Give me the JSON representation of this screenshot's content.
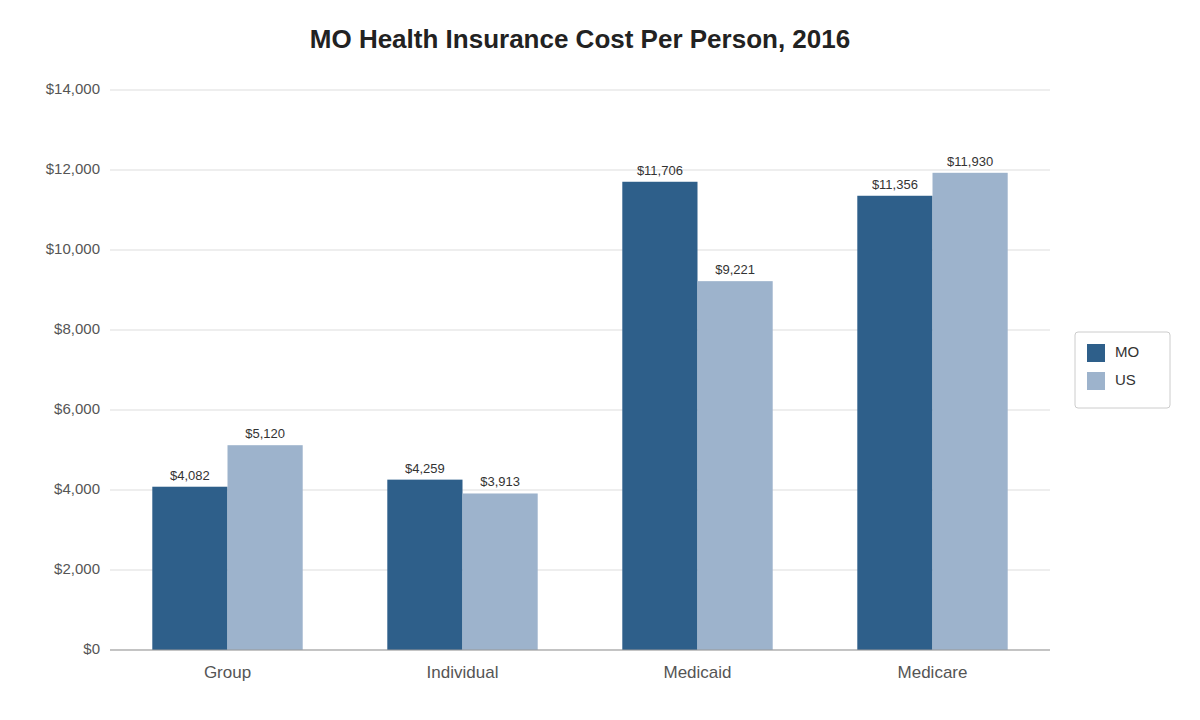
{
  "chart_data": {
    "type": "bar",
    "title": "MO Health Insurance Cost Per Person, 2016",
    "categories": [
      "Group",
      "Individual",
      "Medicaid",
      "Medicare"
    ],
    "series": [
      {
        "name": "MO",
        "color": "#2E5F8A",
        "values": [
          4082,
          4259,
          11706,
          11356
        ],
        "value_labels": [
          "$4,082",
          "$4,259",
          "$11,706",
          "$11,356"
        ]
      },
      {
        "name": "US",
        "color": "#9DB3CC",
        "values": [
          5120,
          3913,
          9221,
          11930
        ],
        "value_labels": [
          "$5,120",
          "$3,913",
          "$9,221",
          "$11,930"
        ]
      }
    ],
    "ylim": [
      0,
      14000
    ],
    "yticks": [
      {
        "value": 0,
        "label": "$0"
      },
      {
        "value": 2000,
        "label": "$2,000"
      },
      {
        "value": 4000,
        "label": "$4,000"
      },
      {
        "value": 6000,
        "label": "$6,000"
      },
      {
        "value": 8000,
        "label": "$8,000"
      },
      {
        "value": 10000,
        "label": "$10,000"
      },
      {
        "value": 12000,
        "label": "$12,000"
      },
      {
        "value": 14000,
        "label": "$14,000"
      }
    ],
    "grid": true,
    "legend": "right",
    "data_labels": true
  }
}
